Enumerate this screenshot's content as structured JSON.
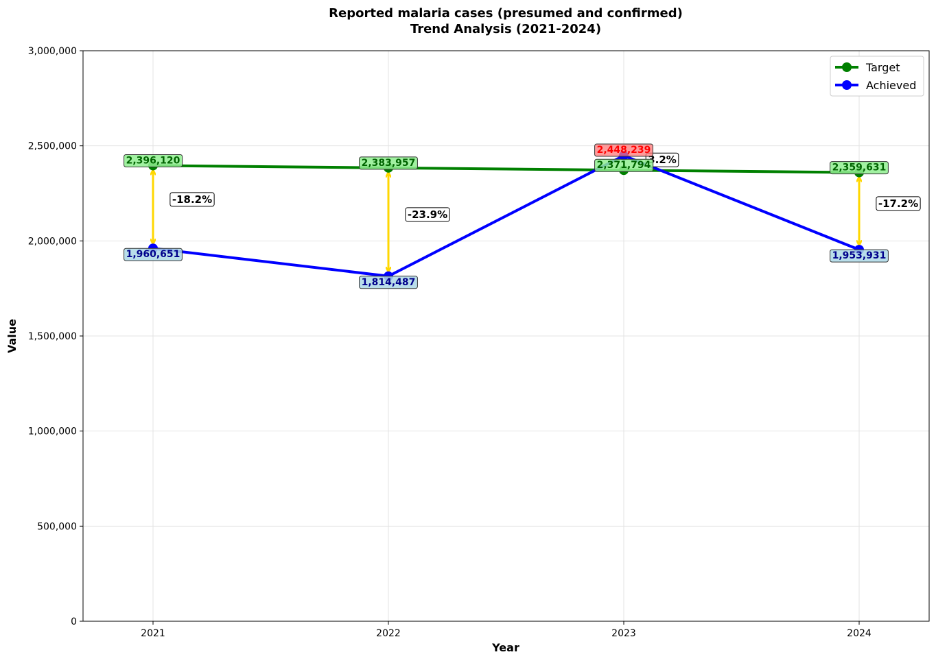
{
  "chart_data": {
    "type": "line",
    "title": "Reported malaria cases (presumed and confirmed)",
    "subtitle": "Trend Analysis (2021-2024)",
    "xlabel": "Year",
    "ylabel": "Value",
    "ylim": [
      0,
      3000000
    ],
    "yticks": [
      0,
      500000,
      1000000,
      1500000,
      2000000,
      2500000,
      3000000
    ],
    "ytick_labels": [
      "0",
      "500,000",
      "1,000,000",
      "1,500,000",
      "2,000,000",
      "2,500,000",
      "3,000,000"
    ],
    "categories": [
      "2021",
      "2022",
      "2023",
      "2024"
    ],
    "grid": true,
    "legend_position": "top-right",
    "series": [
      {
        "name": "Target",
        "color": "#008000",
        "values": [
          2396120,
          2383957,
          2371794,
          2359631
        ],
        "labels": [
          "2,396,120",
          "2,383,957",
          "2,371,794",
          "2,359,631"
        ]
      },
      {
        "name": "Achieved",
        "color": "#0000ff",
        "values": [
          1960651,
          1814487,
          2448239,
          1953931
        ],
        "labels": [
          "1,960,651",
          "1,814,487",
          "2,448,239",
          "1,953,931"
        ]
      }
    ],
    "gap_annotations": [
      "-18.2%",
      "-23.9%",
      "3.2%",
      "-17.2%"
    ],
    "arrow_color": "#ffd700"
  }
}
